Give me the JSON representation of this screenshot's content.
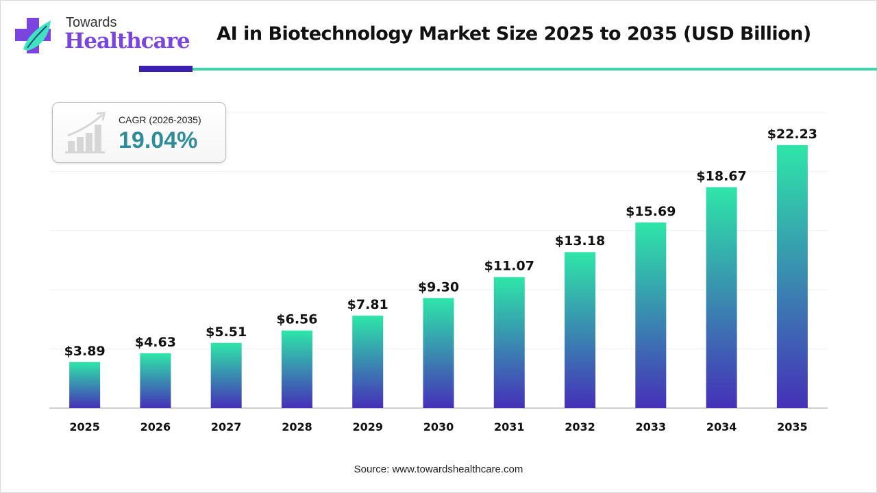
{
  "brand": {
    "line1": "Towards",
    "line2": "Healthcare"
  },
  "cagr": {
    "label": "CAGR (2026-2035)",
    "value": "19.04%"
  },
  "source": "Source: www.towardshealthcare.com",
  "colors": {
    "bar_top": "#2ee6a8",
    "bar_bottom": "#4530b8",
    "accent_dark": "#3a1fb0",
    "accent_teal": "#3dd6a6",
    "cagr_value": "#2f8c9a"
  },
  "chart_data": {
    "type": "bar",
    "title": "AI in Biotechnology Market Size 2025 to 2035 (USD Billion)",
    "categories": [
      "2025",
      "2026",
      "2027",
      "2028",
      "2029",
      "2030",
      "2031",
      "2032",
      "2033",
      "2034",
      "2035"
    ],
    "values": [
      3.89,
      4.63,
      5.51,
      6.56,
      7.81,
      9.3,
      11.07,
      13.18,
      15.69,
      18.67,
      22.23
    ],
    "data_labels": [
      "$3.89",
      "$4.63",
      "$5.51",
      "$6.56",
      "$7.81",
      "$9.30",
      "$11.07",
      "$13.18",
      "$15.69",
      "$18.67",
      "$22.23"
    ],
    "xlabel": "",
    "ylabel": "",
    "ylim": [
      0,
      25
    ],
    "grid": true,
    "y_tick_labels_shown": false
  }
}
